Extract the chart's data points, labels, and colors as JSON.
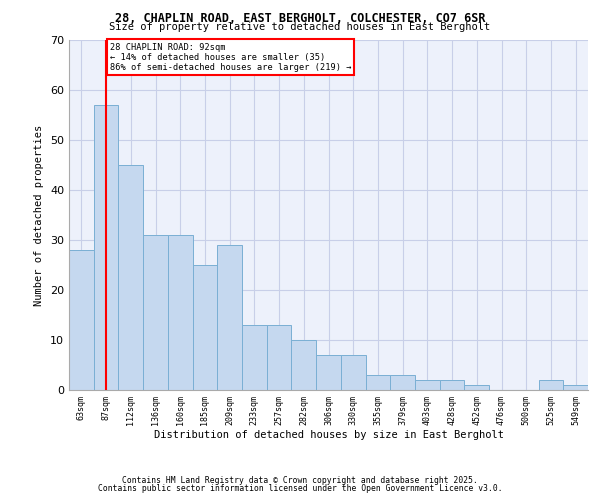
{
  "title_line1": "28, CHAPLIN ROAD, EAST BERGHOLT, COLCHESTER, CO7 6SR",
  "title_line2": "Size of property relative to detached houses in East Bergholt",
  "xlabel": "Distribution of detached houses by size in East Bergholt",
  "ylabel": "Number of detached properties",
  "bar_labels": [
    "63sqm",
    "87sqm",
    "112sqm",
    "136sqm",
    "160sqm",
    "185sqm",
    "209sqm",
    "233sqm",
    "257sqm",
    "282sqm",
    "306sqm",
    "330sqm",
    "355sqm",
    "379sqm",
    "403sqm",
    "428sqm",
    "452sqm",
    "476sqm",
    "500sqm",
    "525sqm",
    "549sqm"
  ],
  "all_values": [
    28,
    57,
    45,
    31,
    31,
    25,
    29,
    13,
    13,
    10,
    7,
    7,
    3,
    3,
    2,
    2,
    1,
    0,
    0,
    2,
    1
  ],
  "bar_color": "#c5d8ef",
  "bar_edge_color": "#7aafd4",
  "ylim": [
    0,
    70
  ],
  "yticks": [
    0,
    10,
    20,
    30,
    40,
    50,
    60,
    70
  ],
  "vline_x_index": 1,
  "annotation_line1": "28 CHAPLIN ROAD: 92sqm",
  "annotation_line2": "← 14% of detached houses are smaller (35)",
  "annotation_line3": "86% of semi-detached houses are larger (219) →",
  "footer_line1": "Contains HM Land Registry data © Crown copyright and database right 2025.",
  "footer_line2": "Contains public sector information licensed under the Open Government Licence v3.0.",
  "background_color": "#edf1fb",
  "grid_color": "#c8cfe8",
  "fig_width": 6.0,
  "fig_height": 5.0
}
